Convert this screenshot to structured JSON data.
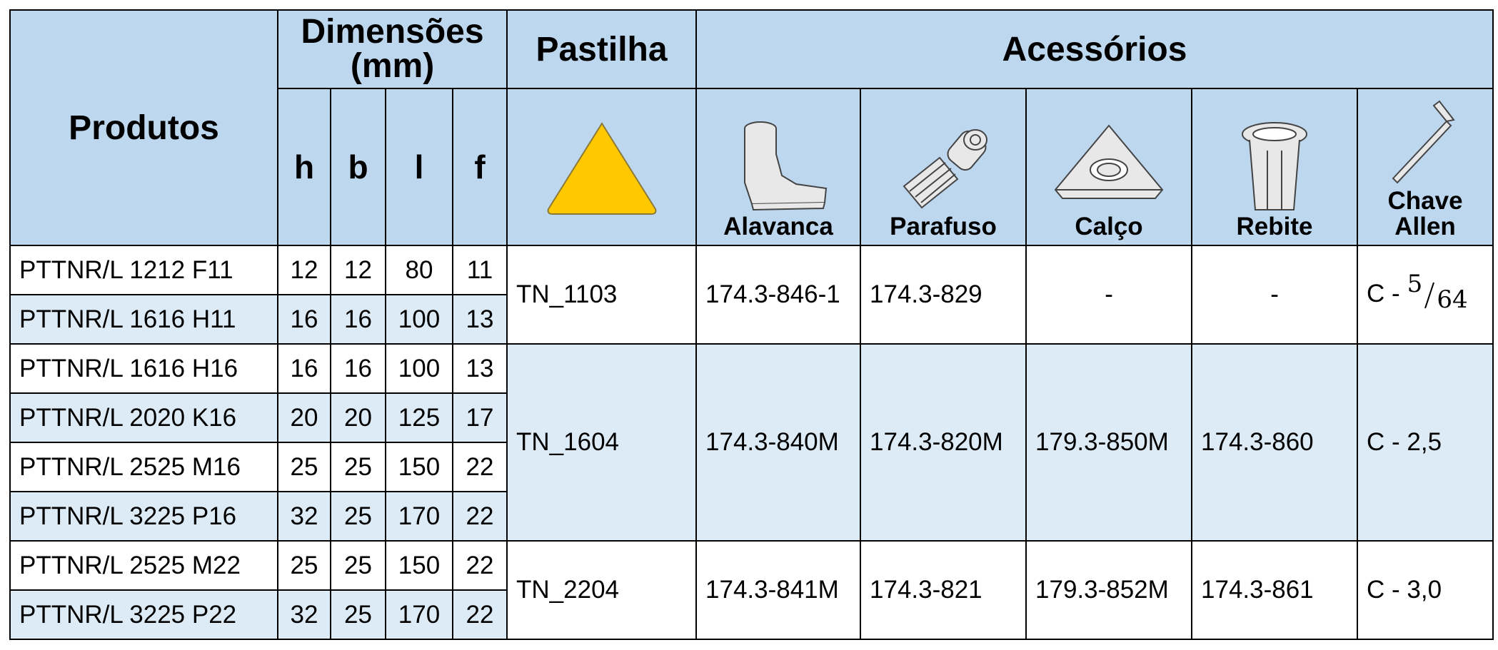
{
  "header": {
    "products": "Produtos",
    "dimensions": "Dimensões (mm)",
    "insert": "Pastilha",
    "accessories": "Acessórios",
    "dims": [
      "h",
      "b",
      "l",
      "f"
    ],
    "accessory_names": [
      "Alavanca",
      "Parafuso",
      "Calço",
      "Rebite",
      "Chave Allen"
    ]
  },
  "groups": [
    {
      "insert": "TN_1103",
      "lever": "174.3-846-1",
      "screw": "174.3-829",
      "shim": "-",
      "rivet": "-",
      "key": {
        "prefix": "C -",
        "numerator": "5",
        "denominator": "64"
      },
      "rows": [
        [
          "PTTNR/L 1212 F11",
          12,
          12,
          80,
          11
        ],
        [
          "PTTNR/L 1616 H11",
          16,
          16,
          100,
          13
        ]
      ]
    },
    {
      "insert": "TN_1604",
      "lever": "174.3-840M",
      "screw": "174.3-820M",
      "shim": "179.3-850M",
      "rivet": "174.3-860",
      "key": "C - 2,5",
      "rows": [
        [
          "PTTNR/L 1616 H16",
          16,
          16,
          100,
          13
        ],
        [
          "PTTNR/L 2020 K16",
          20,
          20,
          125,
          17
        ],
        [
          "PTTNR/L 2525 M16",
          25,
          25,
          150,
          22
        ],
        [
          "PTTNR/L 3225 P16",
          32,
          25,
          170,
          22
        ]
      ]
    },
    {
      "insert": "TN_2204",
      "lever": "174.3-841M",
      "screw": "174.3-821",
      "shim": "179.3-852M",
      "rivet": "174.3-861",
      "key": "C - 3,0",
      "rows": [
        [
          "PTTNR/L 2525 M22",
          25,
          25,
          150,
          22
        ],
        [
          "PTTNR/L 3225 P22",
          32,
          25,
          170,
          22
        ]
      ]
    }
  ]
}
